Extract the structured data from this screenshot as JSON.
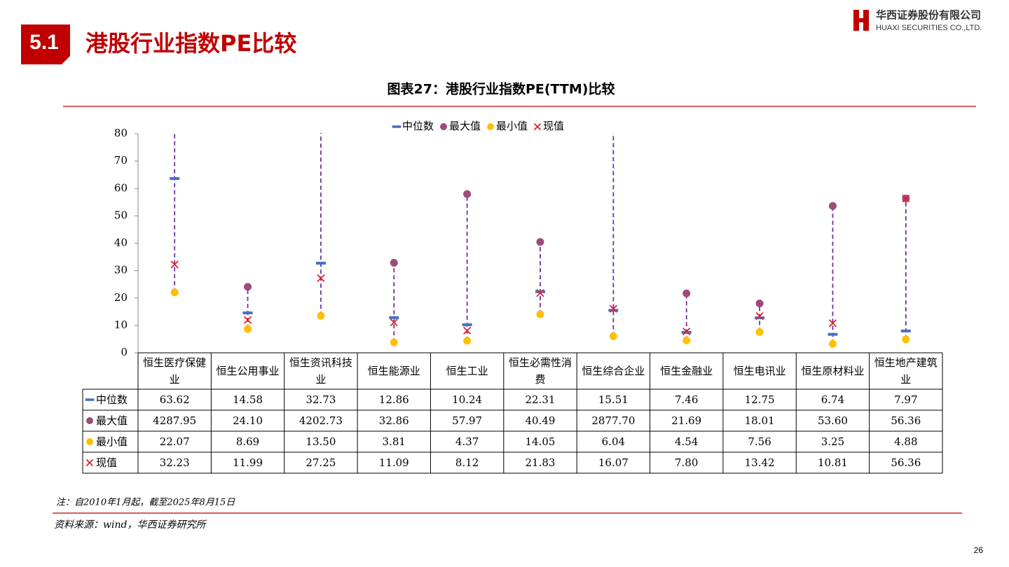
{
  "header": {
    "section": "5.1",
    "title": "港股行业指数PE比较",
    "company_cn": "华西证券股份有限公司",
    "company_en": "HUAXI SECURITIES CO.,LTD."
  },
  "chart_data": {
    "type": "range-dot",
    "title": "图表27：港股行业指数PE(TTM)比较",
    "categories": [
      "恒生医疗保健业",
      "恒生公用事业",
      "恒生资讯科技业",
      "恒生能源业",
      "恒生工业",
      "恒生必需性消费",
      "恒生综合企业",
      "恒生金融业",
      "恒生电讯业",
      "恒生原材料业",
      "恒生地产建筑业"
    ],
    "series": [
      {
        "name": "中位数",
        "color": "#4472c4",
        "marker": "dash",
        "values": [
          63.62,
          14.58,
          32.73,
          12.86,
          10.24,
          22.31,
          15.51,
          7.46,
          12.75,
          6.74,
          7.97
        ],
        "value_labels": [
          "63.62",
          "14.58",
          "32.73",
          "12.86",
          "10.24",
          "22.31",
          "15.51",
          "7.46",
          "12.75",
          "6.74",
          "7.97"
        ]
      },
      {
        "name": "最大值",
        "color": "#9e4a7c",
        "marker": "circle",
        "values": [
          4287.95,
          24.1,
          4202.73,
          32.86,
          57.97,
          40.49,
          2877.7,
          21.69,
          18.01,
          53.6,
          56.36
        ],
        "value_labels": [
          "4287.95",
          "24.10",
          "4202.73",
          "32.86",
          "57.97",
          "40.49",
          "2877.70",
          "21.69",
          "18.01",
          "53.60",
          "56.36"
        ]
      },
      {
        "name": "最小值",
        "color": "#ffc000",
        "marker": "circle",
        "values": [
          22.07,
          8.69,
          13.5,
          3.81,
          4.37,
          14.05,
          6.04,
          4.54,
          7.56,
          3.25,
          4.88
        ],
        "value_labels": [
          "22.07",
          "8.69",
          "13.50",
          "3.81",
          "4.37",
          "14.05",
          "6.04",
          "4.54",
          "7.56",
          "3.25",
          "4.88"
        ]
      },
      {
        "name": "现值",
        "color": "#e8202a",
        "marker": "cross",
        "values": [
          32.23,
          11.99,
          27.25,
          11.09,
          8.12,
          21.83,
          16.07,
          7.8,
          13.42,
          10.81,
          56.36
        ],
        "value_labels": [
          "32.23",
          "11.99",
          "27.25",
          "11.09",
          "8.12",
          "21.83",
          "16.07",
          "7.80",
          "13.42",
          "10.81",
          "56.36"
        ]
      }
    ],
    "range_color": "#7030a0",
    "ylim": [
      0,
      80
    ],
    "yticks": [
      0,
      10,
      20,
      30,
      40,
      50,
      60,
      70,
      80
    ]
  },
  "footer": {
    "note": "注：自2010年1月起，截至2025年8月15日",
    "source": "资料来源：wind，华西证券研究所",
    "page": "26"
  }
}
